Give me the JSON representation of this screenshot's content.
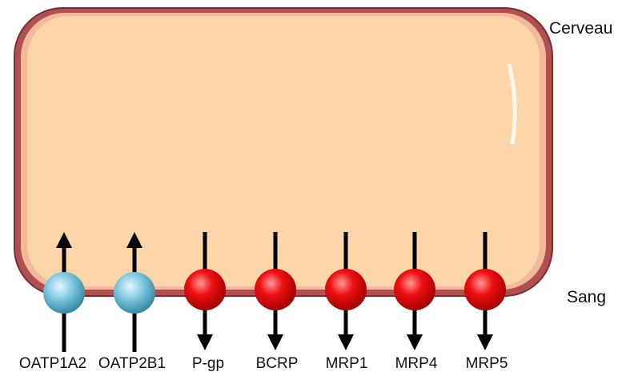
{
  "regions": {
    "top": "Cerveau",
    "bottom": "Sang"
  },
  "transporters": [
    "OATP1A2",
    "OATP2B1",
    "P-gp",
    "BCRP",
    "MRP1",
    "MRP4",
    "MRP5"
  ]
}
